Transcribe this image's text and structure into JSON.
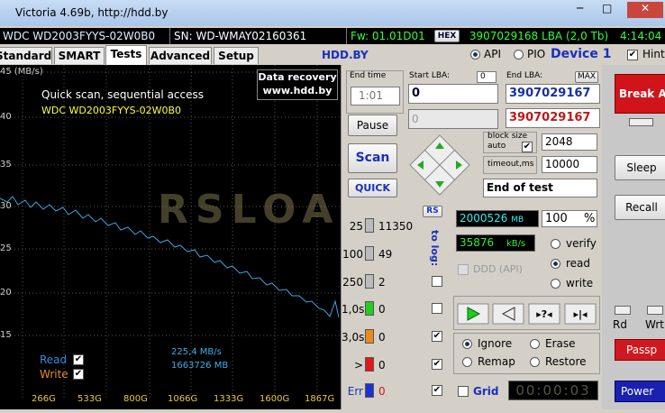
{
  "window": {
    "title": "Victoria 4.69b, http://hdd.by"
  },
  "status_bar": {
    "model": "WDC WD2003FYYS-02W0B0",
    "serial": "SN: WD-WMAY02160361",
    "firmware": "Fw: 01.01D01",
    "hex": "HEX",
    "capacity": "3907029168 LBA (2,0 Tb)",
    "clock": "4:14:04"
  },
  "tabs": [
    "Standard",
    "SMART",
    "Tests",
    "Advanced",
    "Setup"
  ],
  "toolbar": {
    "site": "HDD.BY",
    "api": "API",
    "pio": "PIO",
    "device": "Device 1",
    "hints": "Hints"
  },
  "graph": {
    "y_labels": [
      "45 (MB/s)",
      "40",
      "35",
      "30",
      "25",
      "20",
      "15"
    ],
    "x_labels": [
      "266G",
      "533G",
      "800G",
      "1066G",
      "1333G",
      "1600G",
      "1867G"
    ],
    "heading": "Quick scan, sequential access",
    "model": "WDC WD2003FYYS-02W0B0",
    "recovery": [
      "Data recovery",
      "www.hdd.by"
    ],
    "read": "Read",
    "write": "Write",
    "speed": "225,4 MB/s",
    "position": "1663726 MB",
    "watermark": "RSLOAD.NET"
  },
  "controls": {
    "end_time_label": "End time",
    "end_time": "1:01",
    "start_lba_label": "Start LBA:",
    "start_lba_small": "0",
    "start_lba": "0",
    "start_lba_current": "0",
    "end_lba_label": "End LBA:",
    "max": "MAX",
    "end_lba": "3907029167",
    "end_lba_current": "3907029167",
    "pause": "Pause",
    "scan": "Scan",
    "quick": "QUICK",
    "block_size_label": "block size",
    "auto_label": "auto",
    "block_size": "2048",
    "timeout_label": "timeout,ms",
    "timeout": "10000",
    "end_action": "End of test",
    "rs": "RS",
    "to_log": "to log:",
    "blocks": [
      {
        "label": "25",
        "count": "11350"
      },
      {
        "label": "100",
        "count": "49"
      },
      {
        "label": "250",
        "count": "2"
      },
      {
        "label": "1,0s",
        "count": "0"
      },
      {
        "label": "3,0s",
        "count": "0"
      },
      {
        "label": ">",
        "count": "0"
      },
      {
        "label": "Err",
        "count": "0"
      }
    ],
    "scanned": "2000526",
    "scanned_unit": "MB",
    "percent": "100",
    "percent_unit": "%",
    "rate": "35876",
    "rate_unit": "kB/s",
    "modes": [
      "verify",
      "read",
      "write"
    ],
    "ddd": "DDD (API)",
    "actions": [
      "Ignore",
      "Erase",
      "Remap",
      "Restore"
    ],
    "grid": "Grid",
    "timer": "00:00:03"
  },
  "side": {
    "break_all": "Break All",
    "sleep": "Sleep",
    "recall": "Recall",
    "rd": "Rd",
    "wrt": "Wrt",
    "passp": "Passp",
    "power": "Power"
  }
}
